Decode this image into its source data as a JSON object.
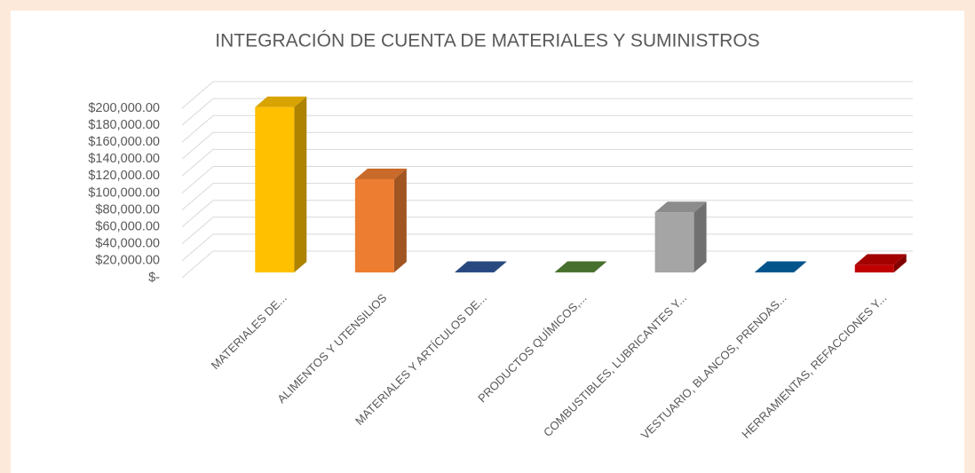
{
  "chart_data": {
    "type": "bar3d",
    "title": "INTEGRACIÓN DE CUENTA DE MATERIALES Y SUMINISTROS",
    "categories": [
      "MATERIALES DE...",
      "ALIMENTOS Y UTENSILIOS",
      "MATERIALES Y ARTÍCULOS DE...",
      "PRODUCTOS QUÍMICOS,...",
      "COMBUSTIBLES, LUBRICANTES Y...",
      "VESTUARIO, BLANCOS, PRENDAS...",
      "HERRAMIENTAS, REFACCIONES Y..."
    ],
    "values": [
      195000,
      110000,
      500,
      500,
      71000,
      500,
      9000
    ],
    "colors": [
      "#ffc000",
      "#ed7d31",
      "#2f5597",
      "#548235",
      "#a5a5a5",
      "#0563a5",
      "#c00000"
    ],
    "ylim": [
      0,
      200000
    ],
    "yticks": [
      {
        "value": 0,
        "label": "$-"
      },
      {
        "value": 20000,
        "label": "$20,000.00"
      },
      {
        "value": 40000,
        "label": "$40,000.00"
      },
      {
        "value": 60000,
        "label": "$60,000.00"
      },
      {
        "value": 80000,
        "label": "$80,000.00"
      },
      {
        "value": 100000,
        "label": "$100,000.00"
      },
      {
        "value": 120000,
        "label": "$120,000.00"
      },
      {
        "value": 140000,
        "label": "$140,000.00"
      },
      {
        "value": 160000,
        "label": "$160,000.00"
      },
      {
        "value": 180000,
        "label": "$180,000.00"
      },
      {
        "value": 200000,
        "label": "$200,000.00"
      }
    ],
    "grid": true
  }
}
